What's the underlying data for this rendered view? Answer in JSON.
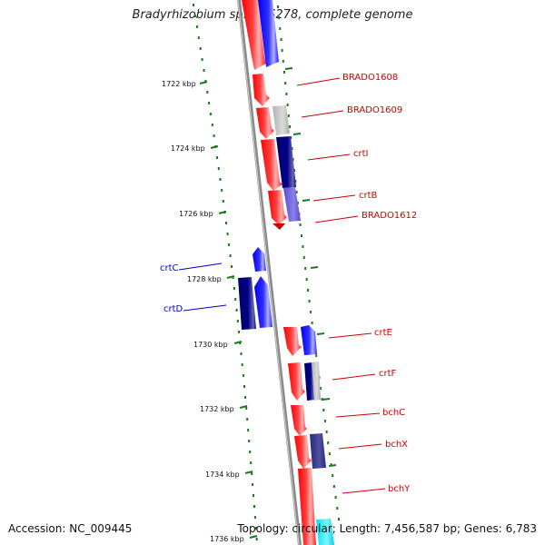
{
  "header": {
    "title": "Bradyrhizobium sp. ORS278, complete genome"
  },
  "footer": {
    "accession": "Accession: NC_009445",
    "summary": "Topology: circular; Length: 7,456,587 bp; Genes: 6,783"
  },
  "colors": {
    "forward_strand": "#ff0000",
    "reverse_strand": "#0000ff",
    "ruler_tick": "#1a7a1a",
    "backbone": "#888888",
    "label_right": "#cc0000",
    "label_left": "#0000cc"
  },
  "scale": {
    "unit": "kbp",
    "ticks": [
      {
        "value": 1722,
        "label": "1722 kbp"
      },
      {
        "value": 1724,
        "label": "1724 kbp"
      },
      {
        "value": 1726,
        "label": "1726 kbp"
      },
      {
        "value": 1728,
        "label": "1728 kbp"
      },
      {
        "value": 1730,
        "label": "1730 kbp"
      },
      {
        "value": 1732,
        "label": "1732 kbp"
      },
      {
        "value": 1734,
        "label": "1734 kbp"
      },
      {
        "value": 1736,
        "label": "1736 kbp"
      }
    ]
  },
  "gene_labels": [
    {
      "name": "BRADO1608",
      "side": "right"
    },
    {
      "name": "BRADO1609",
      "side": "right"
    },
    {
      "name": "crtI",
      "side": "right"
    },
    {
      "name": "crtB",
      "side": "right"
    },
    {
      "name": "BRADO1612",
      "side": "right"
    },
    {
      "name": "crtC",
      "side": "left"
    },
    {
      "name": "crtD",
      "side": "left"
    },
    {
      "name": "crtE",
      "side": "right"
    },
    {
      "name": "crtF",
      "side": "right"
    },
    {
      "name": "bchC",
      "side": "right"
    },
    {
      "name": "bchX",
      "side": "right"
    },
    {
      "name": "bchY",
      "side": "right"
    }
  ]
}
